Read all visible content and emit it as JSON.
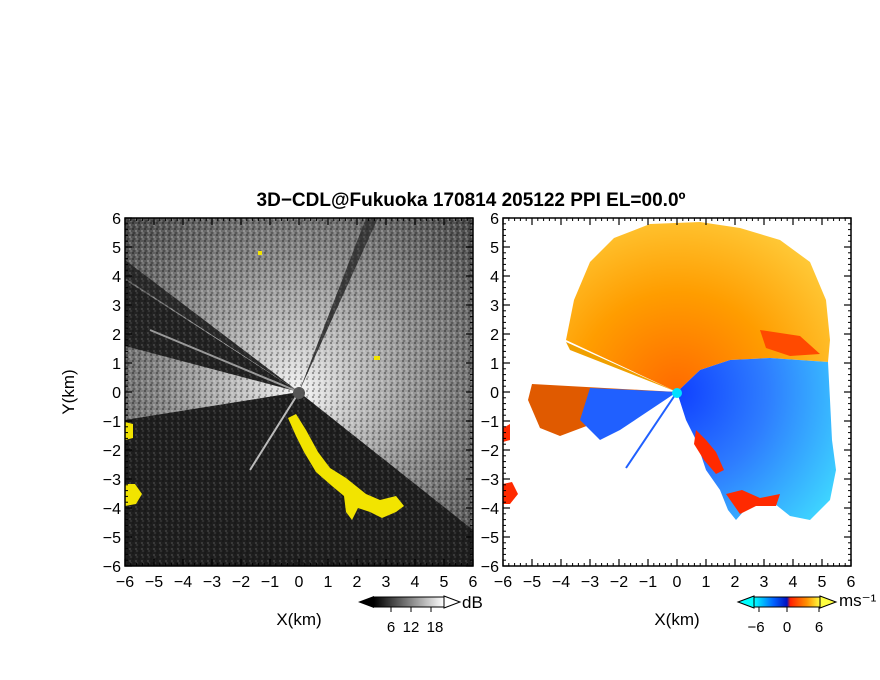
{
  "title": "3D−CDL@Fukuoka 170814 205122 PPI EL=00.0º",
  "chart_data": [
    {
      "type": "heatmap",
      "panel": "left",
      "quantity": "reflectivity",
      "xlabel": "X(km)",
      "ylabel": "Y(km)",
      "xlim": [
        -6,
        6
      ],
      "ylim": [
        -6,
        6
      ],
      "x_ticks": [
        "−6",
        "−5",
        "−4",
        "−3",
        "−2",
        "−1",
        "0",
        "1",
        "2",
        "3",
        "4",
        "5",
        "6"
      ],
      "y_ticks": [
        "6",
        "5",
        "4",
        "3",
        "2",
        "1",
        "0",
        "−1",
        "−2",
        "−3",
        "−4",
        "−5",
        "−6"
      ],
      "colorscale": "grayscale",
      "colorbar": {
        "ticks": [
          "6",
          "12",
          "18"
        ],
        "unit": "dB"
      },
      "highlight_color": "#ffee00"
    },
    {
      "type": "heatmap",
      "panel": "right",
      "quantity": "Doppler velocity",
      "xlabel": "X(km)",
      "xlim": [
        -6,
        6
      ],
      "ylim": [
        -6,
        6
      ],
      "x_ticks": [
        "−6",
        "−5",
        "−4",
        "−3",
        "−2",
        "−1",
        "0",
        "1",
        "2",
        "3",
        "4",
        "5",
        "6"
      ],
      "y_ticks": [
        "6",
        "5",
        "4",
        "3",
        "2",
        "1",
        "0",
        "−1",
        "−2",
        "−3",
        "−4",
        "−5",
        "−6"
      ],
      "colorscale": "cyan-blue-red-yellow diverging",
      "colorbar": {
        "ticks": [
          "−6",
          "0",
          "6"
        ],
        "unit": "ms⁻¹"
      }
    }
  ]
}
